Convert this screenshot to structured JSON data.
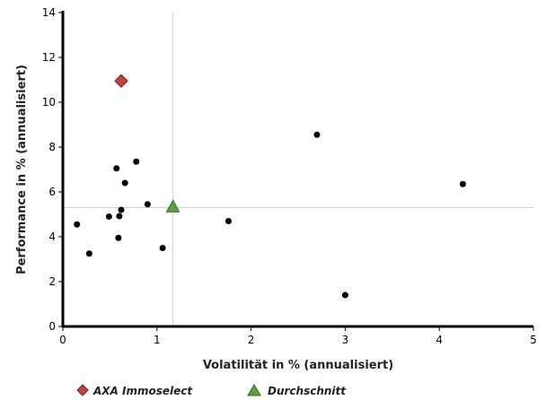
{
  "chart_data": {
    "type": "scatter",
    "xlabel": "Volatilität in % (annualisiert)",
    "ylabel": "Performance in % (annualisiert)",
    "xlim": [
      0,
      5
    ],
    "ylim": [
      0,
      14
    ],
    "x_ticks": [
      "0",
      "1",
      "2",
      "3",
      "4",
      "5"
    ],
    "y_ticks": [
      "0",
      "2",
      "4",
      "6",
      "8",
      "10",
      "12",
      "14"
    ],
    "grid": false,
    "reference_lines": {
      "x": 1.17,
      "y": 5.3
    },
    "legend_position": "bottom-left",
    "series": [
      {
        "name": "",
        "marker": "circle",
        "color": "#000000",
        "points": [
          {
            "x": 0.15,
            "y": 4.55
          },
          {
            "x": 0.28,
            "y": 3.25
          },
          {
            "x": 0.49,
            "y": 4.9
          },
          {
            "x": 0.57,
            "y": 7.05
          },
          {
            "x": 0.59,
            "y": 3.95
          },
          {
            "x": 0.6,
            "y": 4.92
          },
          {
            "x": 0.62,
            "y": 5.2
          },
          {
            "x": 0.66,
            "y": 6.4
          },
          {
            "x": 0.78,
            "y": 7.35
          },
          {
            "x": 0.9,
            "y": 5.45
          },
          {
            "x": 1.06,
            "y": 3.5
          },
          {
            "x": 1.76,
            "y": 4.7
          },
          {
            "x": 2.7,
            "y": 8.55
          },
          {
            "x": 3.0,
            "y": 1.4
          },
          {
            "x": 4.25,
            "y": 6.35
          }
        ]
      },
      {
        "name": "AXA Immoselect",
        "marker": "diamond",
        "color": "#c0443a",
        "points": [
          {
            "x": 0.62,
            "y": 10.95
          }
        ]
      },
      {
        "name": "Durchschnitt",
        "marker": "triangle",
        "color": "#5aa03c",
        "points": [
          {
            "x": 1.17,
            "y": 5.35
          }
        ]
      }
    ]
  }
}
